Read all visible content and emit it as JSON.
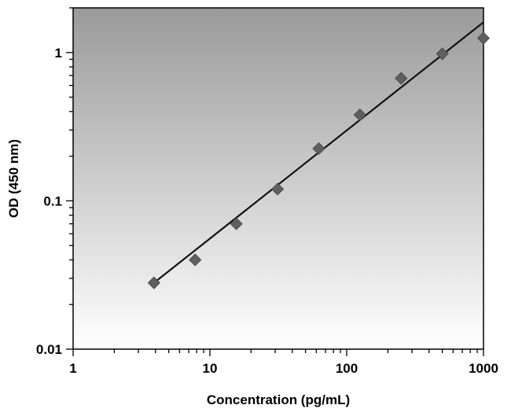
{
  "chart_data": {
    "type": "scatter",
    "title": "",
    "xlabel": "Concentration (pg/mL)",
    "ylabel": "OD (450 nm)",
    "x_scale": "log",
    "y_scale": "log",
    "xlim": [
      1,
      1000
    ],
    "ylim": [
      0.01,
      2
    ],
    "x_ticks": [
      1,
      10,
      100,
      1000
    ],
    "x_tick_labels": [
      "1",
      "10",
      "100",
      "1000"
    ],
    "y_ticks": [
      0.01,
      0.1,
      1
    ],
    "y_tick_labels": [
      "0.01",
      "0.1",
      "1"
    ],
    "grid": false,
    "legend": "none",
    "background": "vertical gradient, gray at top to white at bottom",
    "colors": {
      "marker": "#5f5f5f",
      "fit_line": "#111111",
      "gradient_top": "#9a9a9a",
      "gradient_bottom": "#ffffff"
    },
    "series": [
      {
        "marker": "diamond",
        "x": [
          3.9,
          7.8,
          15.6,
          31.25,
          62.5,
          125,
          250,
          500,
          1000
        ],
        "y": [
          0.028,
          0.04,
          0.07,
          0.12,
          0.225,
          0.38,
          0.67,
          0.98,
          1.25
        ]
      }
    ],
    "fit_line": {
      "type": "linear in log-log",
      "x": [
        3.9,
        1000
      ],
      "y": [
        0.028,
        1.6
      ]
    }
  }
}
